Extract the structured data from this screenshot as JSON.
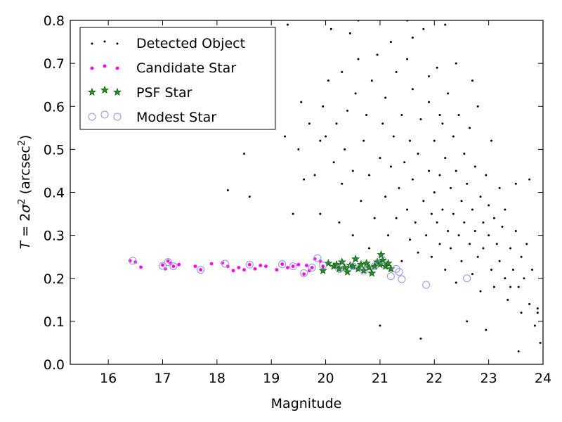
{
  "chart_data": {
    "type": "scatter",
    "xlabel": "Magnitude",
    "ylabel": {
      "prefix": "T",
      "eq": " = 2",
      "sigma": "σ",
      "sup": "2",
      "paren_open": " (arcsec",
      "paren_close": ")"
    },
    "xlim": [
      15.3,
      24.0
    ],
    "ylim": [
      0.0,
      0.8
    ],
    "x_ticks": [
      "16",
      "17",
      "18",
      "19",
      "20",
      "21",
      "22",
      "23",
      "24"
    ],
    "y_ticks": [
      "0.0",
      "0.1",
      "0.2",
      "0.3",
      "0.4",
      "0.5",
      "0.6",
      "0.7",
      "0.8"
    ],
    "grid": false,
    "legend_position": "top-left",
    "colors": {
      "detected": "#000000",
      "candidate_fill": "#ff00ff",
      "candidate_edge": "#ff00ff",
      "psf_fill": "#2e8b2e",
      "psf_edge": "#006400",
      "modest_edge": "#9999ee"
    },
    "series": [
      {
        "name": "Detected Object",
        "marker": "dot",
        "points": [
          [
            18.2,
            0.405
          ],
          [
            18.5,
            0.49
          ],
          [
            18.6,
            0.39
          ],
          [
            19.25,
            0.53
          ],
          [
            19.4,
            0.35
          ],
          [
            19.5,
            0.5
          ],
          [
            19.55,
            0.61
          ],
          [
            19.6,
            0.43
          ],
          [
            19.7,
            0.56
          ],
          [
            19.8,
            0.44
          ],
          [
            19.9,
            0.35
          ],
          [
            19.9,
            0.52
          ],
          [
            19.95,
            0.6
          ],
          [
            20.0,
            0.53
          ],
          [
            20.05,
            0.66
          ],
          [
            20.1,
            0.78
          ],
          [
            20.15,
            0.47
          ],
          [
            20.2,
            0.56
          ],
          [
            20.25,
            0.33
          ],
          [
            20.3,
            0.42
          ],
          [
            20.3,
            0.68
          ],
          [
            20.35,
            0.5
          ],
          [
            20.4,
            0.59
          ],
          [
            20.45,
            0.77
          ],
          [
            20.5,
            0.3
          ],
          [
            20.5,
            0.45
          ],
          [
            20.55,
            0.63
          ],
          [
            20.6,
            0.71
          ],
          [
            20.65,
            0.38
          ],
          [
            20.7,
            0.52
          ],
          [
            20.75,
            0.58
          ],
          [
            20.8,
            0.27
          ],
          [
            20.8,
            0.44
          ],
          [
            20.85,
            0.66
          ],
          [
            20.9,
            0.34
          ],
          [
            20.95,
            0.72
          ],
          [
            21.0,
            0.48
          ],
          [
            21.0,
            0.09
          ],
          [
            21.05,
            0.56
          ],
          [
            21.1,
            0.39
          ],
          [
            21.1,
            0.62
          ],
          [
            21.15,
            0.3
          ],
          [
            21.2,
            0.46
          ],
          [
            21.2,
            0.75
          ],
          [
            21.25,
            0.53
          ],
          [
            21.3,
            0.34
          ],
          [
            21.3,
            0.68
          ],
          [
            21.35,
            0.41
          ],
          [
            21.4,
            0.24
          ],
          [
            21.4,
            0.58
          ],
          [
            21.45,
            0.47
          ],
          [
            21.5,
            0.36
          ],
          [
            21.5,
            0.71
          ],
          [
            21.55,
            0.29
          ],
          [
            21.55,
            0.52
          ],
          [
            21.6,
            0.43
          ],
          [
            21.6,
            0.64
          ],
          [
            21.65,
            0.33
          ],
          [
            21.7,
            0.26
          ],
          [
            21.7,
            0.49
          ],
          [
            21.75,
            0.57
          ],
          [
            21.75,
            0.06
          ],
          [
            21.8,
            0.38
          ],
          [
            21.8,
            0.78
          ],
          [
            21.85,
            0.3
          ],
          [
            21.9,
            0.45
          ],
          [
            21.9,
            0.61
          ],
          [
            21.95,
            0.35
          ],
          [
            21.95,
            0.25
          ],
          [
            22.0,
            0.52
          ],
          [
            22.0,
            0.4
          ],
          [
            22.05,
            0.33
          ],
          [
            22.05,
            0.69
          ],
          [
            22.1,
            0.44
          ],
          [
            22.1,
            0.28
          ],
          [
            22.15,
            0.56
          ],
          [
            22.15,
            0.36
          ],
          [
            22.2,
            0.48
          ],
          [
            22.2,
            0.22
          ],
          [
            22.25,
            0.31
          ],
          [
            22.25,
            0.63
          ],
          [
            22.3,
            0.41
          ],
          [
            22.3,
            0.27
          ],
          [
            22.35,
            0.53
          ],
          [
            22.35,
            0.35
          ],
          [
            22.4,
            0.45
          ],
          [
            22.4,
            0.19
          ],
          [
            22.45,
            0.3
          ],
          [
            22.45,
            0.58
          ],
          [
            22.5,
            0.38
          ],
          [
            22.5,
            0.24
          ],
          [
            22.55,
            0.49
          ],
          [
            22.55,
            0.33
          ],
          [
            22.6,
            0.42
          ],
          [
            22.6,
            0.1
          ],
          [
            22.65,
            0.28
          ],
          [
            22.65,
            0.55
          ],
          [
            22.7,
            0.36
          ],
          [
            22.7,
            0.21
          ],
          [
            22.75,
            0.46
          ],
          [
            22.75,
            0.31
          ],
          [
            22.8,
            0.25
          ],
          [
            22.8,
            0.6
          ],
          [
            22.85,
            0.39
          ],
          [
            22.85,
            0.17
          ],
          [
            22.9,
            0.33
          ],
          [
            22.9,
            0.27
          ],
          [
            22.95,
            0.44
          ],
          [
            22.95,
            0.08
          ],
          [
            23.0,
            0.3
          ],
          [
            23.0,
            0.37
          ],
          [
            23.05,
            0.22
          ],
          [
            23.05,
            0.52
          ],
          [
            23.1,
            0.34
          ],
          [
            23.1,
            0.18
          ],
          [
            23.15,
            0.28
          ],
          [
            23.2,
            0.41
          ],
          [
            23.2,
            0.24
          ],
          [
            23.25,
            0.32
          ],
          [
            23.3,
            0.2
          ],
          [
            23.3,
            0.36
          ],
          [
            23.35,
            0.15
          ],
          [
            23.4,
            0.27
          ],
          [
            23.45,
            0.22
          ],
          [
            23.5,
            0.31
          ],
          [
            23.5,
            0.42
          ],
          [
            23.55,
            0.18
          ],
          [
            23.6,
            0.25
          ],
          [
            23.6,
            0.12
          ],
          [
            23.65,
            0.2
          ],
          [
            23.7,
            0.28
          ],
          [
            23.75,
            0.14
          ],
          [
            23.8,
            0.22
          ],
          [
            23.85,
            0.09
          ],
          [
            23.9,
            0.13
          ],
          [
            23.95,
            0.05
          ],
          [
            23.55,
            0.03
          ],
          [
            23.75,
            0.43
          ],
          [
            23.9,
            0.12
          ],
          [
            23.4,
            0.18
          ],
          [
            21.9,
            0.67
          ],
          [
            21.6,
            0.76
          ],
          [
            22.1,
            0.58
          ],
          [
            22.4,
            0.7
          ],
          [
            22.7,
            0.66
          ],
          [
            21.5,
            0.8
          ],
          [
            22.2,
            0.79
          ],
          [
            20.6,
            0.8
          ],
          [
            19.3,
            0.79
          ]
        ]
      },
      {
        "name": "Candidate Star",
        "marker": "circle-small",
        "points": [
          [
            16.4,
            0.241
          ],
          [
            16.5,
            0.238
          ],
          [
            16.6,
            0.226
          ],
          [
            17.0,
            0.231
          ],
          [
            17.05,
            0.222
          ],
          [
            17.1,
            0.24
          ],
          [
            17.15,
            0.235
          ],
          [
            17.2,
            0.228
          ],
          [
            17.3,
            0.232
          ],
          [
            17.6,
            0.228
          ],
          [
            17.7,
            0.22
          ],
          [
            17.9,
            0.234
          ],
          [
            18.1,
            0.236
          ],
          [
            18.2,
            0.228
          ],
          [
            18.3,
            0.218
          ],
          [
            18.4,
            0.225
          ],
          [
            18.5,
            0.22
          ],
          [
            18.6,
            0.232
          ],
          [
            18.7,
            0.222
          ],
          [
            18.8,
            0.23
          ],
          [
            18.9,
            0.228
          ],
          [
            19.1,
            0.22
          ],
          [
            19.2,
            0.233
          ],
          [
            19.3,
            0.225
          ],
          [
            19.4,
            0.228
          ],
          [
            19.5,
            0.232
          ],
          [
            19.6,
            0.21
          ],
          [
            19.65,
            0.23
          ],
          [
            19.7,
            0.218
          ],
          [
            19.75,
            0.225
          ],
          [
            19.8,
            0.245
          ],
          [
            19.9,
            0.24
          ],
          [
            19.95,
            0.228
          ]
        ]
      },
      {
        "name": "PSF Star",
        "marker": "star",
        "points": [
          [
            19.95,
            0.218
          ],
          [
            20.05,
            0.235
          ],
          [
            20.15,
            0.228
          ],
          [
            20.2,
            0.232
          ],
          [
            20.25,
            0.222
          ],
          [
            20.3,
            0.238
          ],
          [
            20.35,
            0.225
          ],
          [
            20.4,
            0.215
          ],
          [
            20.45,
            0.23
          ],
          [
            20.5,
            0.228
          ],
          [
            20.55,
            0.245
          ],
          [
            20.6,
            0.222
          ],
          [
            20.65,
            0.232
          ],
          [
            20.7,
            0.218
          ],
          [
            20.75,
            0.235
          ],
          [
            20.8,
            0.225
          ],
          [
            20.85,
            0.212
          ],
          [
            20.9,
            0.228
          ],
          [
            20.95,
            0.238
          ],
          [
            21.0,
            0.232
          ],
          [
            21.02,
            0.255
          ],
          [
            21.05,
            0.242
          ],
          [
            21.1,
            0.228
          ],
          [
            21.15,
            0.235
          ],
          [
            21.2,
            0.222
          ]
        ]
      },
      {
        "name": "Modest Star",
        "marker": "circle-open",
        "points": [
          [
            16.45,
            0.241
          ],
          [
            17.0,
            0.229
          ],
          [
            17.1,
            0.238
          ],
          [
            17.2,
            0.228
          ],
          [
            17.7,
            0.22
          ],
          [
            18.15,
            0.234
          ],
          [
            18.6,
            0.232
          ],
          [
            19.2,
            0.233
          ],
          [
            19.4,
            0.228
          ],
          [
            19.6,
            0.212
          ],
          [
            19.75,
            0.225
          ],
          [
            19.85,
            0.247
          ],
          [
            19.95,
            0.23
          ],
          [
            20.25,
            0.222
          ],
          [
            20.5,
            0.228
          ],
          [
            20.7,
            0.218
          ],
          [
            20.9,
            0.228
          ],
          [
            21.05,
            0.242
          ],
          [
            21.2,
            0.205
          ],
          [
            21.3,
            0.222
          ],
          [
            21.35,
            0.215
          ],
          [
            21.4,
            0.198
          ],
          [
            21.85,
            0.185
          ],
          [
            22.6,
            0.2
          ]
        ]
      }
    ]
  }
}
